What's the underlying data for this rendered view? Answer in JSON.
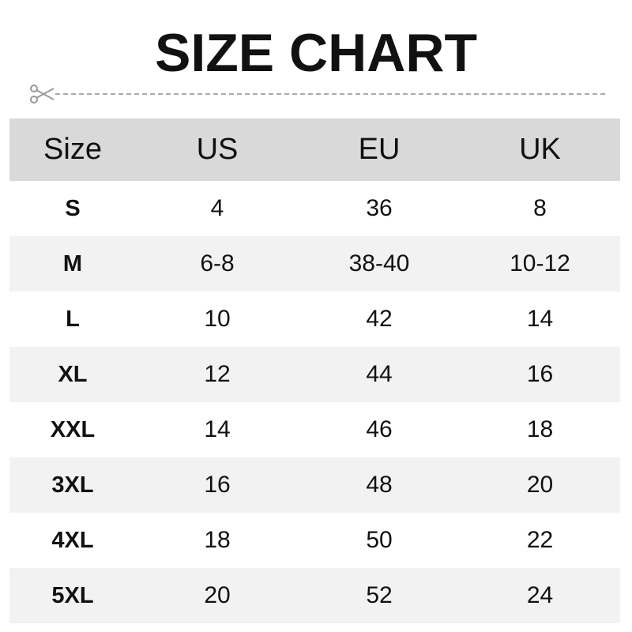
{
  "title": "SIZE CHART",
  "colors": {
    "header_bg": "#d9d9d9",
    "alt_row_bg": "#f2f2f2",
    "divider": "#aaaaaa"
  },
  "icons": {
    "cut_line": "scissors-icon"
  },
  "table": {
    "headers": [
      "Size",
      "US",
      "EU",
      "UK"
    ],
    "rows": [
      [
        "S",
        "4",
        "36",
        "8"
      ],
      [
        "M",
        "6-8",
        "38-40",
        "10-12"
      ],
      [
        "L",
        "10",
        "42",
        "14"
      ],
      [
        "XL",
        "12",
        "44",
        "16"
      ],
      [
        "XXL",
        "14",
        "46",
        "18"
      ],
      [
        "3XL",
        "16",
        "48",
        "20"
      ],
      [
        "4XL",
        "18",
        "50",
        "22"
      ],
      [
        "5XL",
        "20",
        "52",
        "24"
      ]
    ]
  }
}
